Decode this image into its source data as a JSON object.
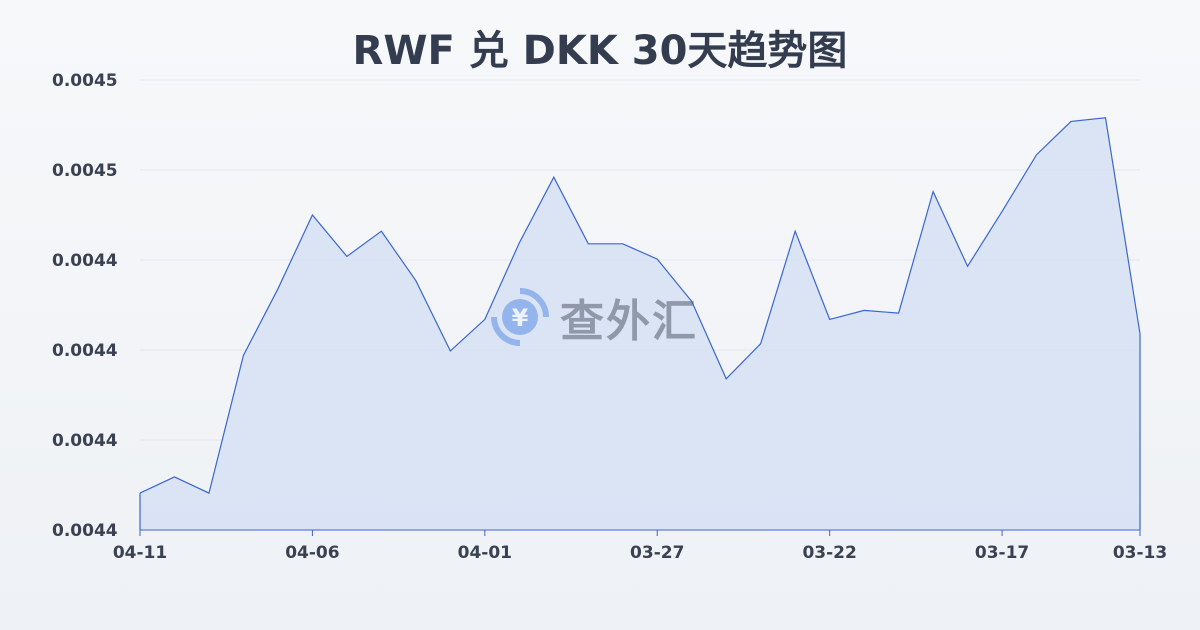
{
  "chart_data": {
    "type": "area",
    "title": "RWF 兑 DKK 30天趋势图",
    "xlabel": "",
    "ylabel": "",
    "x": [
      "04-11",
      "04-10",
      "04-09",
      "04-08",
      "04-07",
      "04-06",
      "04-05",
      "04-04",
      "04-03",
      "04-02",
      "04-01",
      "03-31",
      "03-30",
      "03-29",
      "03-28",
      "03-27",
      "03-26",
      "03-25",
      "03-24",
      "03-23",
      "03-22",
      "03-21",
      "03-20",
      "03-19",
      "03-18",
      "03-17",
      "03-16",
      "03-15",
      "03-14",
      "03-13"
    ],
    "values": [
      0.0044141,
      0.0044159,
      0.0044141,
      0.0044294,
      0.0044368,
      0.004445,
      0.0044404,
      0.0044432,
      0.0044377,
      0.0044299,
      0.0044334,
      0.0044419,
      0.0044492,
      0.0044418,
      0.0044418,
      0.0044401,
      0.0044354,
      0.0044268,
      0.0044307,
      0.0044432,
      0.0044334,
      0.0044344,
      0.0044341,
      0.0044476,
      0.0044393,
      0.0044454,
      0.0044517,
      0.0044554,
      0.0044558,
      0.0044318
    ],
    "x_tick_labels": [
      "04-11",
      "04-06",
      "04-01",
      "03-27",
      "03-22",
      "03-17",
      "03-13"
    ],
    "y_ticks": [
      0.00441,
      0.00442,
      0.00443,
      0.00444,
      0.00445,
      0.00446
    ],
    "y_tick_labels": [
      "0.0044",
      "0.0044",
      "0.0044",
      "0.0044",
      "0.0045",
      "0.0045"
    ],
    "ylim": [
      0.00441,
      0.00446
    ],
    "grid": true,
    "line_color": "#3a66d0",
    "fill_color": "#d6e0f5"
  },
  "watermark": {
    "text": "查外汇",
    "icon": "yen-exchange-icon"
  }
}
